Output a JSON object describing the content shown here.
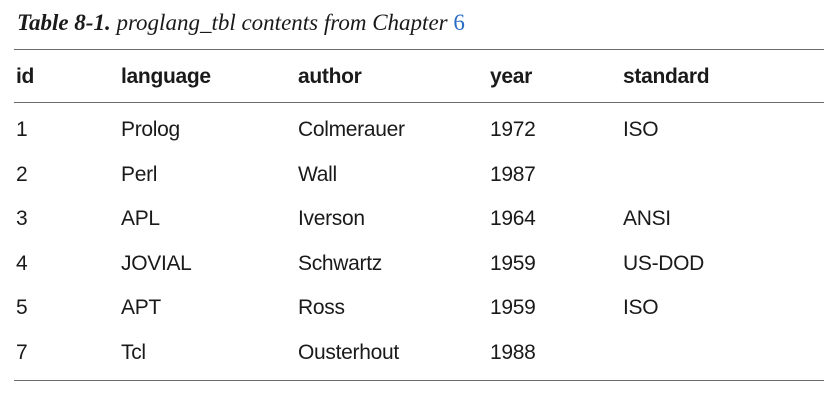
{
  "caption": {
    "label": "Table 8-1.",
    "text": "proglang_tbl contents from Chapter",
    "chapter_ref": "6",
    "accent_color": "#2a6cc4"
  },
  "table": {
    "columns": [
      "id",
      "language",
      "author",
      "year",
      "standard"
    ],
    "rows": [
      [
        "1",
        "Prolog",
        "Colmerauer",
        "1972",
        "ISO"
      ],
      [
        "2",
        "Perl",
        "Wall",
        "1987",
        ""
      ],
      [
        "3",
        "APL",
        "Iverson",
        "1964",
        "ANSI"
      ],
      [
        "4",
        "JOVIAL",
        "Schwartz",
        "1959",
        "US-DOD"
      ],
      [
        "5",
        "APT",
        "Ross",
        "1959",
        "ISO"
      ],
      [
        "7",
        "Tcl",
        "Ousterhout",
        "1988",
        ""
      ]
    ]
  }
}
